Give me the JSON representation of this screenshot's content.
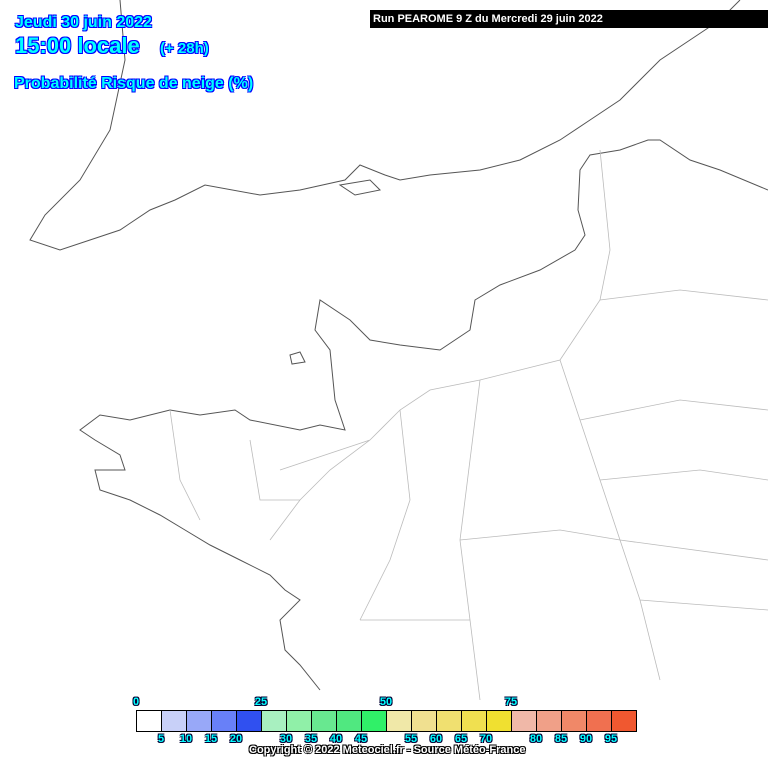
{
  "header": {
    "date": "Jeudi 30 juin 2022",
    "time": "15:00 locale",
    "lead": "(+ 28h)",
    "parameter": "Probabilité Risque de neige (%)",
    "run": "Run PEAROME 9 Z du Mercredi 29 juin 2022"
  },
  "legend": {
    "top_labels": [
      "0",
      "25",
      "50",
      "75"
    ],
    "bottom_labels": [
      "5",
      "10",
      "15",
      "20",
      "30",
      "35",
      "40",
      "45",
      "55",
      "60",
      "65",
      "70",
      "80",
      "85",
      "90",
      "95"
    ],
    "colors": [
      "#ffffff",
      "#c8d0f8",
      "#98a8f8",
      "#6880f8",
      "#3050f0",
      "#a8f0c0",
      "#90f0a8",
      "#68e890",
      "#50e880",
      "#30f068",
      "#f0e8a8",
      "#f0e090",
      "#f0e070",
      "#f0e050",
      "#f0e030",
      "#f0b8a8",
      "#f0a088",
      "#f08868",
      "#f07050",
      "#f05830"
    ]
  },
  "copyright": "Copyright © 2022 Meteociel.fr - Source Météo-France"
}
